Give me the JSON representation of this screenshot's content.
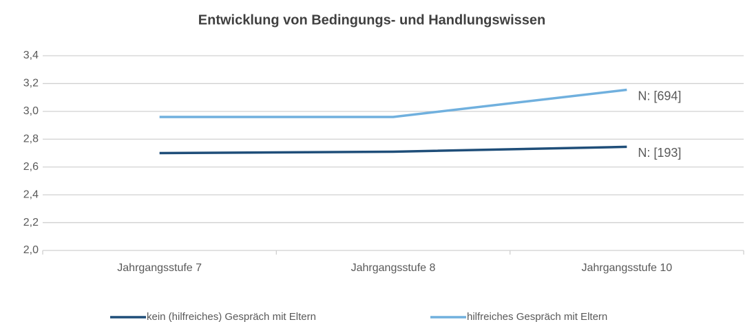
{
  "chart_data": {
    "type": "line",
    "title": "Entwicklung von Bedingungs- und Handlungswissen",
    "categories": [
      "Jahrgangsstufe 7",
      "Jahrgangsstufe 8",
      "Jahrgangsstufe 10"
    ],
    "series": [
      {
        "name": "kein (hilfreiches) Gespräch mit Eltern",
        "color": "#1f4e79",
        "values": [
          2.7,
          2.71,
          2.745
        ]
      },
      {
        "name": "hilfreiches Gespräch mit Eltern",
        "color": "#70b0de",
        "values": [
          2.96,
          2.96,
          3.155
        ]
      }
    ],
    "annotations": [
      "N: [193]",
      "N: [694]"
    ],
    "ylim": [
      2.0,
      3.4
    ],
    "yticks": [
      {
        "value": 2.0,
        "label": "2,0"
      },
      {
        "value": 2.2,
        "label": "2,2"
      },
      {
        "value": 2.4,
        "label": "2,4"
      },
      {
        "value": 2.6,
        "label": "2,6"
      },
      {
        "value": 2.8,
        "label": "2,8"
      },
      {
        "value": 3.0,
        "label": "3,0"
      },
      {
        "value": 3.2,
        "label": "3,2"
      },
      {
        "value": 3.4,
        "label": "3,4"
      }
    ],
    "grid": true,
    "legend": "bottom"
  }
}
